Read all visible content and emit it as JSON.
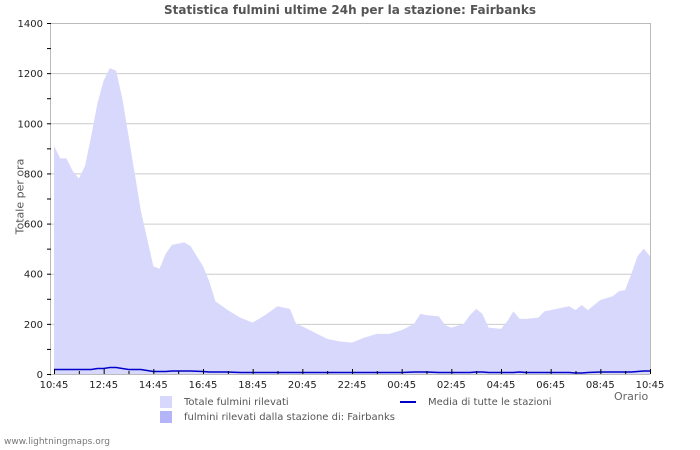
{
  "title": "Statistica fulmini ultime 24h per la stazione: Fairbanks",
  "ylabel": "Totale per ora",
  "xlabel": "Orario",
  "footer": "www.lightningmaps.org",
  "colors": {
    "total_fill": "#d8d8fc",
    "station_fill": "#b4b4f8",
    "average_line": "#0000c8",
    "grid": "#cccccc",
    "axis": "#bbbbbb"
  },
  "legend": {
    "items": [
      {
        "label": "Totale fulmini rilevati",
        "type": "swatch",
        "color": "#d8d8fc"
      },
      {
        "label": "fulmini rilevati dalla stazione di: Fairbanks",
        "type": "swatch",
        "color": "#b4b4f8"
      },
      {
        "label": "Media di tutte le stazioni",
        "type": "line",
        "color": "#0000c8"
      }
    ]
  },
  "chart_data": {
    "type": "area",
    "title": "Statistica fulmini ultime 24h per la stazione: Fairbanks",
    "xlabel": "Orario",
    "ylabel": "Totale per ora",
    "ylim": [
      0,
      1400
    ],
    "yticks": [
      0,
      200,
      400,
      600,
      800,
      1000,
      1200,
      1400
    ],
    "xticks": [
      "10:45",
      "12:45",
      "14:45",
      "16:45",
      "18:45",
      "20:45",
      "22:45",
      "00:45",
      "02:45",
      "04:45",
      "06:45",
      "08:45",
      "10:45"
    ],
    "grid": true,
    "legend_position": "bottom",
    "x_hours": [
      0,
      0.25,
      0.5,
      0.75,
      1,
      1.25,
      1.5,
      1.75,
      2,
      2.25,
      2.5,
      2.75,
      3,
      3.25,
      3.5,
      3.75,
      4,
      4.25,
      4.5,
      4.75,
      5,
      5.25,
      5.5,
      6,
      6.25,
      6.5,
      7,
      7.5,
      8,
      8.5,
      9,
      9.5,
      9.75,
      10,
      10.5,
      11,
      11.5,
      12,
      12.5,
      13,
      13.5,
      14,
      14.5,
      14.75,
      15,
      15.5,
      15.75,
      16,
      16.5,
      16.75,
      17,
      17.25,
      17.5,
      18,
      18.25,
      18.5,
      18.75,
      19,
      19.5,
      19.75,
      20,
      20.5,
      20.75,
      21,
      21.25,
      21.5,
      22,
      22.5,
      22.75,
      23,
      23.25,
      23.5,
      23.75,
      24
    ],
    "series": [
      {
        "name": "Totale fulmini rilevati",
        "values": [
          910,
          860,
          860,
          810,
          780,
          830,
          950,
          1080,
          1170,
          1220,
          1210,
          1100,
          950,
          800,
          650,
          540,
          430,
          420,
          480,
          515,
          520,
          525,
          510,
          430,
          370,
          290,
          255,
          225,
          205,
          235,
          270,
          260,
          200,
          190,
          165,
          140,
          130,
          125,
          145,
          160,
          160,
          175,
          200,
          240,
          235,
          230,
          195,
          185,
          200,
          235,
          260,
          240,
          185,
          180,
          210,
          250,
          220,
          220,
          225,
          250,
          255,
          265,
          270,
          255,
          275,
          255,
          295,
          310,
          330,
          335,
          400,
          470,
          500,
          470
        ]
      },
      {
        "name": "Media di tutte le stazioni",
        "values": [
          18,
          18,
          18,
          18,
          18,
          18,
          18,
          22,
          22,
          26,
          26,
          22,
          18,
          18,
          18,
          14,
          10,
          10,
          10,
          12,
          12,
          12,
          12,
          10,
          8,
          8,
          8,
          6,
          6,
          6,
          6,
          6,
          6,
          6,
          6,
          6,
          6,
          6,
          6,
          6,
          6,
          6,
          8,
          8,
          8,
          6,
          6,
          6,
          6,
          6,
          8,
          8,
          6,
          6,
          6,
          6,
          8,
          6,
          6,
          6,
          6,
          6,
          6,
          4,
          4,
          6,
          8,
          8,
          8,
          8,
          8,
          10,
          12,
          12
        ]
      }
    ]
  }
}
